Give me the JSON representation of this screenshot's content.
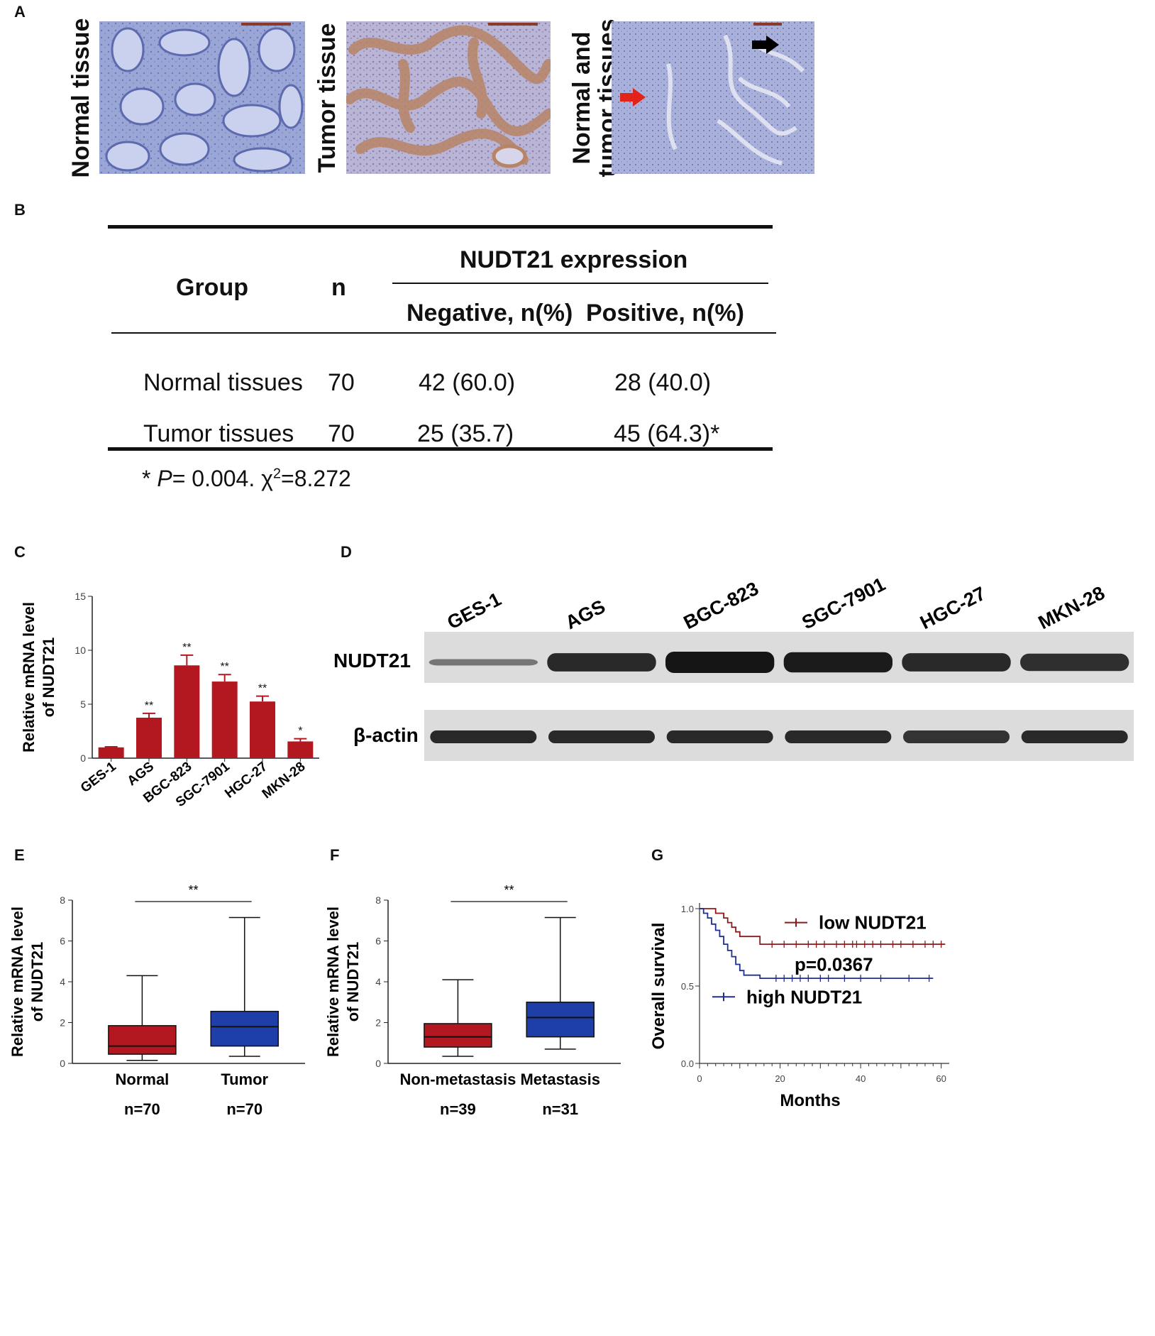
{
  "panels": {
    "A": "A",
    "B": "B",
    "C": "C",
    "D": "D",
    "E": "E",
    "F": "F",
    "G": "G"
  },
  "ihc": {
    "images": [
      {
        "label": "Normal tissue"
      },
      {
        "label": "Tumor tissue"
      },
      {
        "label_line1": "Normal and",
        "label_line2": "tumor  tissues"
      }
    ],
    "colors": {
      "normal_bg": "#b9c4e6",
      "tumor_bg": "#d4b9c2",
      "red_arrow": "#e2231a",
      "black_arrow": "#000000"
    }
  },
  "table": {
    "header_group": "Group",
    "header_n": "n",
    "header_expression": "NUDT21 expression",
    "header_negative": "Negative, n(%)",
    "header_positive": "Positive, n(%)",
    "rows": [
      {
        "group": "Normal tissues",
        "n": "70",
        "negative": "42 (60.0)",
        "positive": "28 (40.0)"
      },
      {
        "group": "Tumor  tissues",
        "n": "70",
        "negative": "25 (35.7)",
        "positive": "45 (64.3)*"
      }
    ],
    "footnote_star": "*",
    "footnote_p": "P",
    "footnote_rest": "= 0.004.",
    "footnote_chi": "χ",
    "footnote_sup": "2",
    "footnote_chi_val": "=8.272"
  },
  "western": {
    "lanes": [
      "GES-1",
      "AGS",
      "BGC-823",
      "SGC-7901",
      "HGC-27",
      "MKN-28"
    ],
    "rows": [
      "NUDT21",
      "β-actin"
    ],
    "nudt21_intensity": [
      0.25,
      0.85,
      1.0,
      0.95,
      0.85,
      0.8
    ],
    "actin_intensity": [
      0.9,
      0.9,
      0.9,
      0.9,
      0.85,
      0.9
    ]
  },
  "chart_data": [
    {
      "id": "C",
      "type": "bar",
      "ylabel_line1": "Relative mRNA level",
      "ylabel_line2": "of NUDT21",
      "categories": [
        "GES-1",
        "AGS",
        "BGC-823",
        "SGC-7901",
        "HGC-27",
        "MKN-28"
      ],
      "values": [
        1.0,
        3.75,
        8.6,
        7.1,
        5.25,
        1.55
      ],
      "errors": [
        0.05,
        0.4,
        0.95,
        0.65,
        0.5,
        0.25
      ],
      "significance": [
        "",
        "**",
        "**",
        "**",
        "**",
        "*"
      ],
      "ylim": [
        0,
        15
      ],
      "yticks": [
        "0",
        "5",
        "10",
        "15"
      ],
      "color": "#b3171f"
    },
    {
      "id": "E",
      "type": "box",
      "ylabel_line1": "Relative mRNA level",
      "ylabel_line2": "of NUDT21",
      "categories": [
        "Normal",
        "Tumor"
      ],
      "counts": [
        "n=70",
        "n=70"
      ],
      "boxes": [
        {
          "min": 0.15,
          "q1": 0.45,
          "median": 0.85,
          "q3": 1.85,
          "max": 4.3,
          "color": "#b3171f"
        },
        {
          "min": 0.35,
          "q1": 0.85,
          "median": 1.8,
          "q3": 2.55,
          "max": 7.15,
          "color": "#1f3fa8"
        }
      ],
      "significance": "**",
      "ylim": [
        0,
        8
      ],
      "yticks": [
        "0",
        "2",
        "4",
        "6",
        "8"
      ]
    },
    {
      "id": "F",
      "type": "box",
      "ylabel_line1": "Relative mRNA level",
      "ylabel_line2": "of NUDT21",
      "categories": [
        "Non-metastasis",
        "Metastasis"
      ],
      "counts": [
        "n=39",
        "n=31"
      ],
      "boxes": [
        {
          "min": 0.35,
          "q1": 0.8,
          "median": 1.3,
          "q3": 1.95,
          "max": 4.1,
          "color": "#b3171f"
        },
        {
          "min": 0.7,
          "q1": 1.3,
          "median": 2.25,
          "q3": 3.0,
          "max": 7.15,
          "color": "#1f3fa8"
        }
      ],
      "significance": "**",
      "ylim": [
        0,
        8
      ],
      "yticks": [
        "0",
        "2",
        "4",
        "6",
        "8"
      ]
    },
    {
      "id": "G",
      "type": "line",
      "xlabel": "Months",
      "ylabel": "Overall survival",
      "xlim": [
        0,
        62
      ],
      "ylim": [
        0,
        1.0
      ],
      "xticks": [
        "0",
        "20",
        "40",
        "60"
      ],
      "yticks": [
        "0.0",
        "0.5",
        "1.0"
      ],
      "pvalue": "p=0.0367",
      "series": [
        {
          "name": "low NUDT21",
          "color": "#8b1a1a",
          "steps": [
            [
              0,
              1.0
            ],
            [
              4,
              1.0
            ],
            [
              4,
              0.97
            ],
            [
              6,
              0.97
            ],
            [
              6,
              0.94
            ],
            [
              7,
              0.94
            ],
            [
              7,
              0.91
            ],
            [
              8,
              0.91
            ],
            [
              8,
              0.88
            ],
            [
              9,
              0.88
            ],
            [
              9,
              0.85
            ],
            [
              10,
              0.85
            ],
            [
              10,
              0.82
            ],
            [
              15,
              0.82
            ],
            [
              15,
              0.77
            ],
            [
              61,
              0.77
            ]
          ],
          "censor_x": [
            18,
            21,
            24,
            27,
            29,
            31,
            34,
            36,
            38,
            39,
            41,
            43,
            45,
            48,
            50,
            53,
            56,
            58,
            60
          ]
        },
        {
          "name": "high NUDT21",
          "color": "#1f2f8f",
          "steps": [
            [
              0,
              1.0
            ],
            [
              1,
              1.0
            ],
            [
              1,
              0.97
            ],
            [
              2,
              0.97
            ],
            [
              2,
              0.94
            ],
            [
              3,
              0.94
            ],
            [
              3,
              0.9
            ],
            [
              4,
              0.9
            ],
            [
              4,
              0.86
            ],
            [
              5,
              0.86
            ],
            [
              5,
              0.82
            ],
            [
              6,
              0.82
            ],
            [
              6,
              0.77
            ],
            [
              7,
              0.77
            ],
            [
              7,
              0.73
            ],
            [
              8,
              0.73
            ],
            [
              8,
              0.69
            ],
            [
              9,
              0.69
            ],
            [
              9,
              0.64
            ],
            [
              10,
              0.64
            ],
            [
              10,
              0.6
            ],
            [
              11,
              0.6
            ],
            [
              11,
              0.57
            ],
            [
              15,
              0.57
            ],
            [
              15,
              0.55
            ],
            [
              58,
              0.55
            ]
          ],
          "censor_x": [
            19,
            21,
            23,
            25,
            27,
            30,
            32,
            36,
            40,
            45,
            52,
            57
          ]
        }
      ]
    }
  ]
}
